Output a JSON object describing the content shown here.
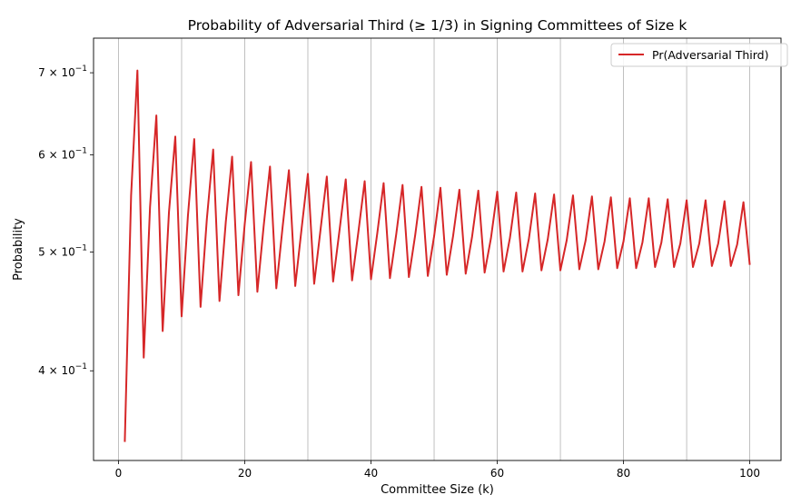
{
  "chart_data": {
    "type": "line",
    "title": "Probability of Adversarial Third (≥ 1/3) in Signing Committees of Size k",
    "xlabel": "Committee Size (k)",
    "ylabel": "Probability",
    "xlim": [
      -3.95,
      104.95
    ],
    "ylim": [
      0.338,
      0.747
    ],
    "yscale": "log",
    "grid": "x-major",
    "legend_position": "top-right",
    "x_ticks": [
      0,
      20,
      40,
      60,
      80,
      100
    ],
    "x_tick_labels": [
      "0",
      "20",
      "40",
      "60",
      "80",
      "100"
    ],
    "y_ticks": [
      0.4,
      0.5,
      0.6,
      0.7
    ],
    "y_tick_labels": [
      {
        "mantissa": "4",
        "base": "10",
        "exponent": "−1"
      },
      {
        "mantissa": "5",
        "base": "10",
        "exponent": "−1"
      },
      {
        "mantissa": "6",
        "base": "10",
        "exponent": "−1"
      },
      {
        "mantissa": "7",
        "base": "10",
        "exponent": "−1"
      }
    ],
    "series": [
      {
        "name": "Pr(Adversarial Third)",
        "color": "#d62728",
        "x": [
          1,
          2,
          3,
          4,
          5,
          6,
          7,
          8,
          9,
          10,
          11,
          12,
          13,
          14,
          15,
          16,
          17,
          18,
          19,
          20,
          21,
          22,
          23,
          24,
          25,
          26,
          27,
          28,
          29,
          30,
          31,
          32,
          33,
          34,
          35,
          36,
          37,
          38,
          39,
          40,
          41,
          42,
          43,
          44,
          45,
          46,
          47,
          48,
          49,
          50,
          51,
          52,
          53,
          54,
          55,
          56,
          57,
          58,
          59,
          60,
          61,
          62,
          63,
          64,
          65,
          66,
          67,
          68,
          69,
          70,
          71,
          72,
          73,
          74,
          75,
          76,
          77,
          78,
          79,
          80,
          81,
          82,
          83,
          84,
          85,
          86,
          87,
          88,
          89,
          90,
          91,
          92,
          93,
          94,
          95,
          96,
          97,
          98,
          99,
          100
        ],
        "values": [
          0.35,
          0.556,
          0.703,
          0.41,
          0.544,
          0.646,
          0.431,
          0.539,
          0.621,
          0.443,
          0.535,
          0.618,
          0.451,
          0.532,
          0.606,
          0.456,
          0.529,
          0.598,
          0.461,
          0.527,
          0.592,
          0.464,
          0.525,
          0.587,
          0.467,
          0.524,
          0.583,
          0.469,
          0.522,
          0.579,
          0.471,
          0.521,
          0.576,
          0.473,
          0.52,
          0.573,
          0.474,
          0.519,
          0.571,
          0.475,
          0.518,
          0.569,
          0.476,
          0.517,
          0.567,
          0.477,
          0.516,
          0.565,
          0.478,
          0.515,
          0.564,
          0.479,
          0.515,
          0.562,
          0.48,
          0.514,
          0.561,
          0.481,
          0.513,
          0.56,
          0.482,
          0.513,
          0.559,
          0.482,
          0.512,
          0.558,
          0.483,
          0.512,
          0.557,
          0.483,
          0.511,
          0.556,
          0.484,
          0.511,
          0.555,
          0.484,
          0.51,
          0.554,
          0.485,
          0.51,
          0.553,
          0.485,
          0.509,
          0.553,
          0.486,
          0.509,
          0.552,
          0.486,
          0.508,
          0.551,
          0.486,
          0.508,
          0.551,
          0.487,
          0.508,
          0.55,
          0.487,
          0.507,
          0.549,
          0.488
        ]
      }
    ]
  }
}
